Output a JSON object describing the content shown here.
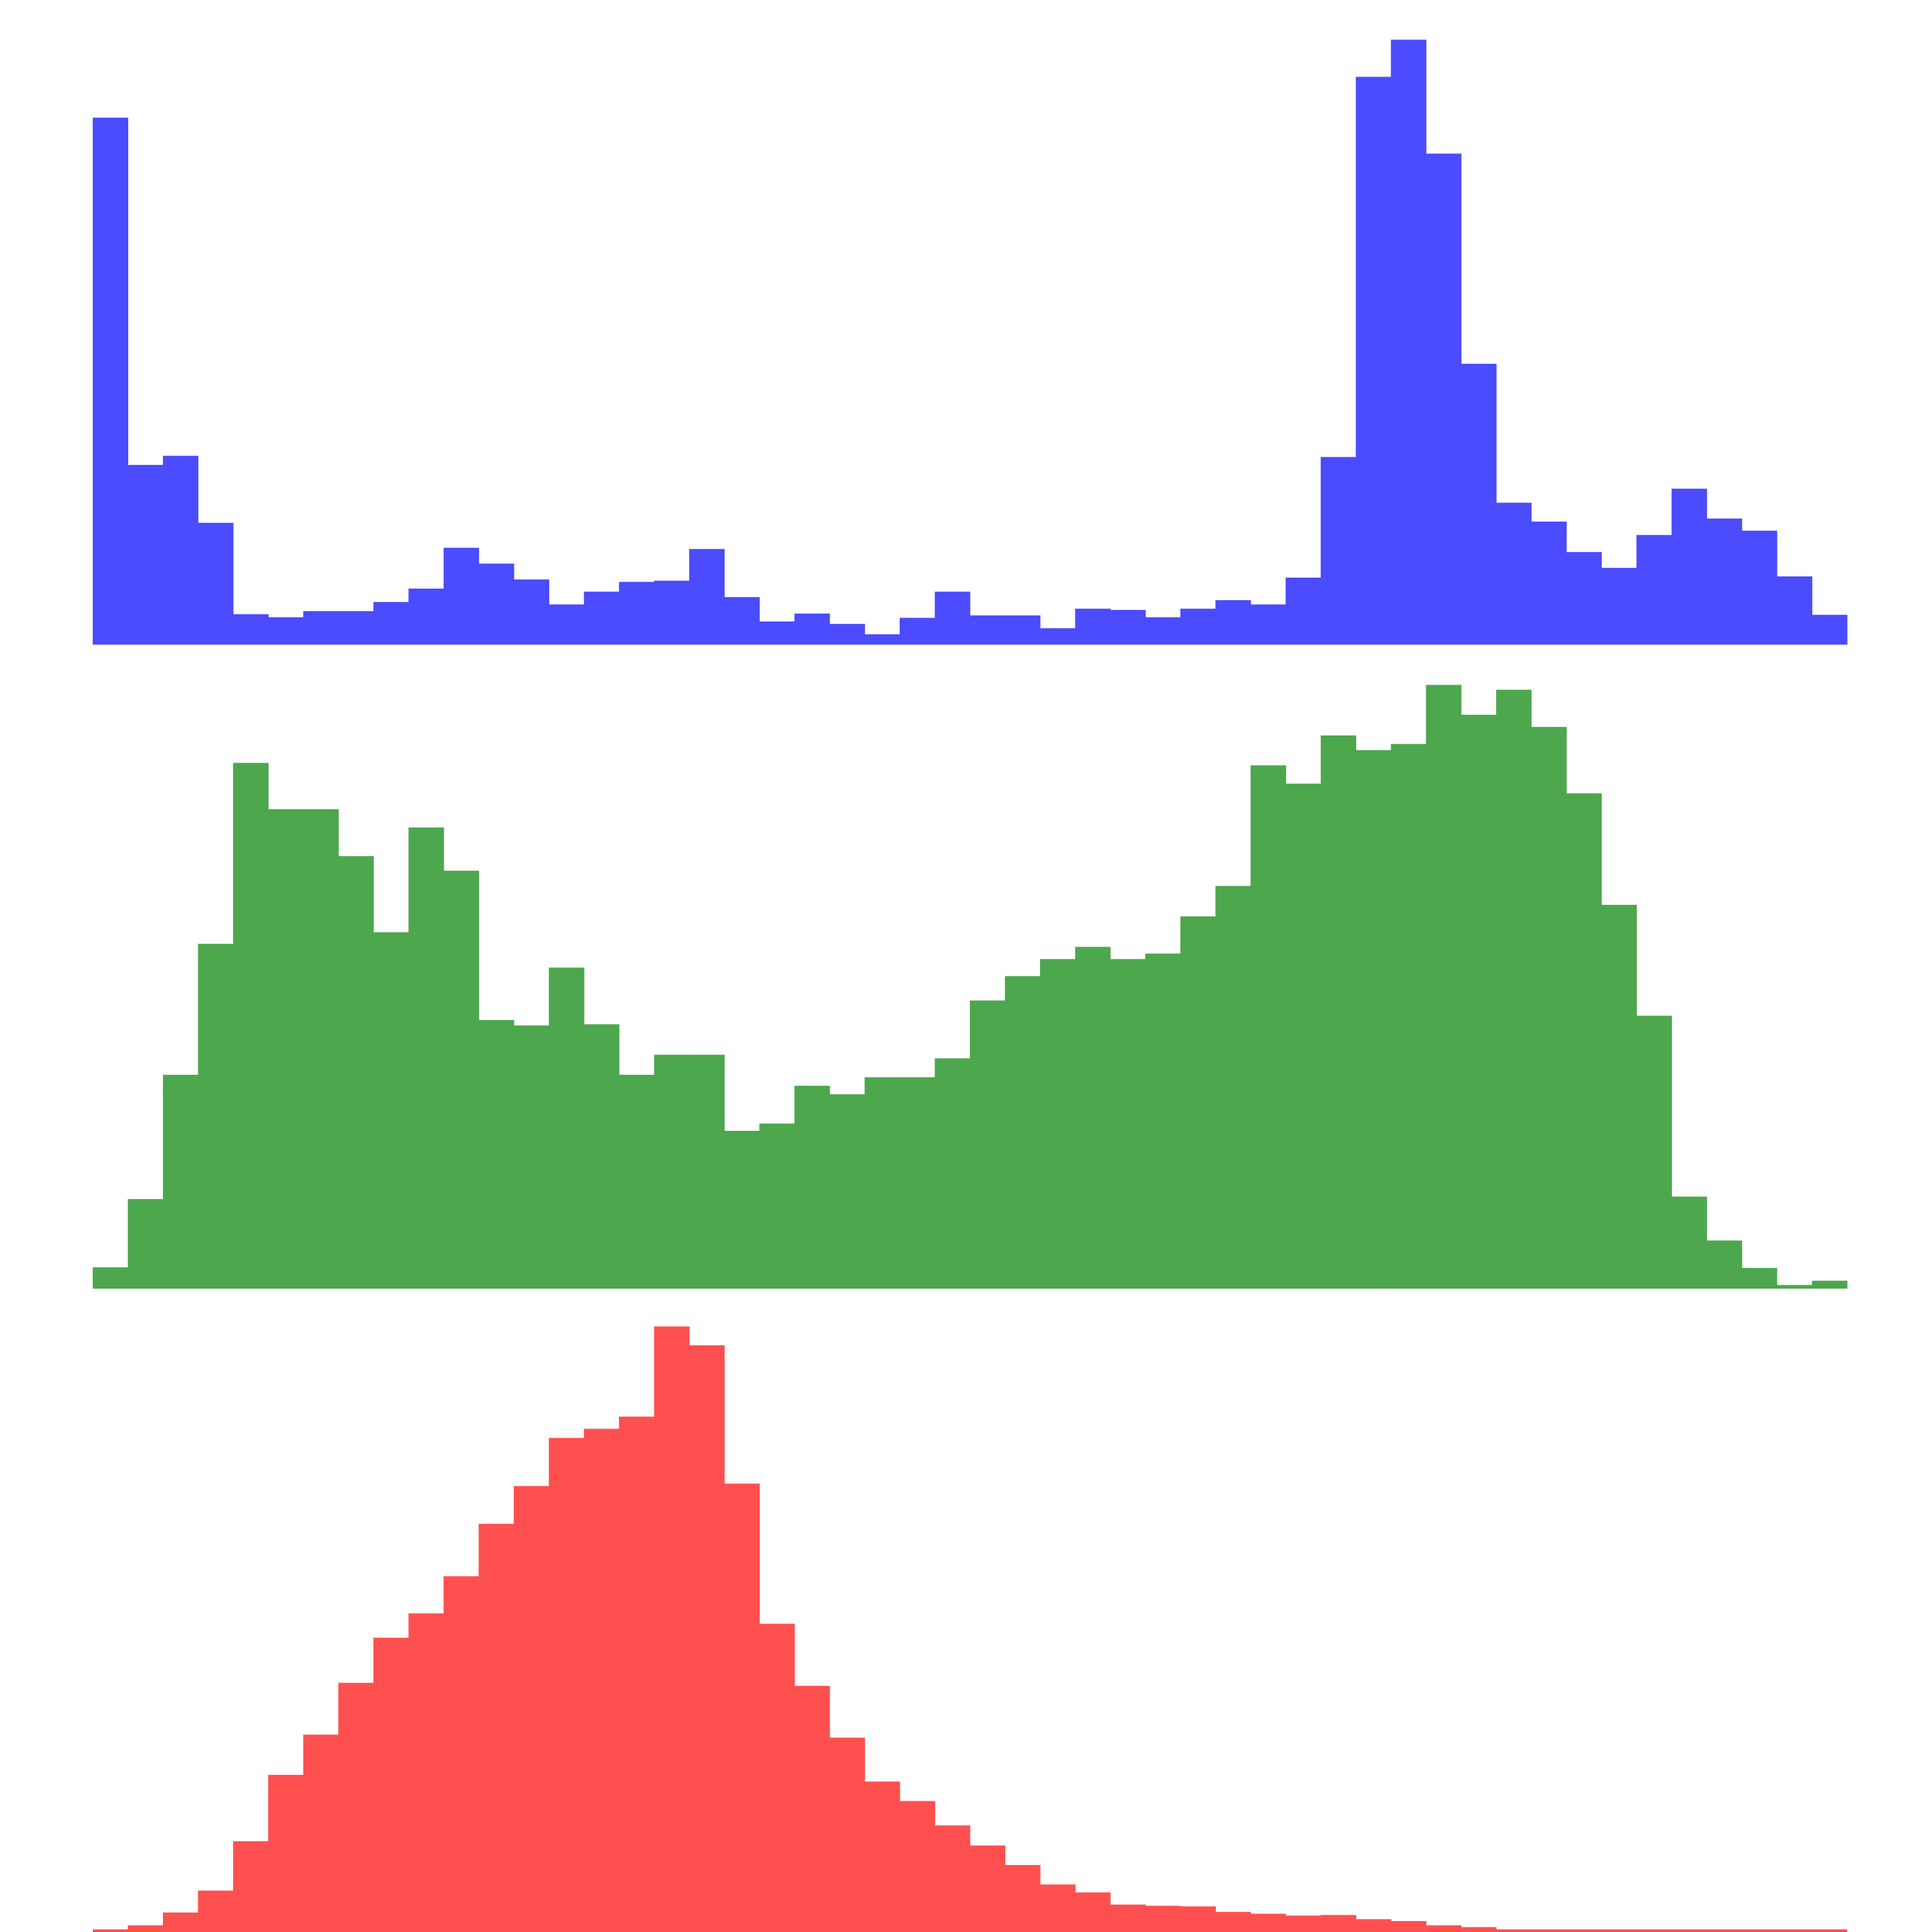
{
  "chart_data": [
    {
      "type": "bar",
      "name": "blue",
      "color": "#4b4bff",
      "ylim": [
        0,
        100
      ],
      "grid": false,
      "values": [
        86.5,
        29.5,
        31.0,
        20.0,
        5.0,
        4.5,
        5.5,
        5.5,
        7.0,
        9.2,
        15.9,
        13.3,
        10.7,
        6.6,
        8.7,
        10.3,
        10.5,
        15.7,
        7.8,
        3.8,
        5.1,
        3.4,
        1.7,
        4.4,
        8.7,
        4.8,
        4.8,
        2.7,
        5.9,
        5.7,
        4.5,
        5.9,
        7.3,
        6.6,
        11.0,
        30.8,
        93.2,
        99.3,
        80.6,
        46.1,
        23.3,
        20.2,
        15.2,
        12.6,
        18.0,
        25.6,
        20.7,
        18.7,
        11.2,
        4.9
      ]
    },
    {
      "type": "bar",
      "name": "green",
      "color": "#4da74d",
      "ylim": [
        0,
        100
      ],
      "grid": false,
      "values": [
        3.5,
        14.7,
        35.1,
        56.6,
        86.3,
        78.7,
        78.7,
        71.0,
        58.5,
        75.7,
        68.6,
        44.1,
        43.2,
        52.7,
        43.4,
        35.1,
        38.4,
        38.4,
        25.9,
        27.1,
        33.3,
        31.9,
        34.7,
        34.7,
        37.8,
        47.3,
        51.3,
        54.1,
        56.1,
        54.1,
        55.0,
        61.1,
        66.1,
        85.9,
        82.9,
        90.8,
        88.4,
        89.4,
        99.1,
        94.2,
        98.3,
        92.2,
        81.3,
        63.0,
        44.8,
        15.1,
        7.9,
        3.4,
        0.6,
        1.3
      ]
    },
    {
      "type": "bar",
      "name": "red",
      "color": "#ff5050",
      "ylim": [
        0,
        100
      ],
      "grid": false,
      "values": [
        0.2,
        1.1,
        3.2,
        6.8,
        14.9,
        25.8,
        32.4,
        40.9,
        48.3,
        52.3,
        58.4,
        67.0,
        73.2,
        81.1,
        82.6,
        84.6,
        99.4,
        96.3,
        73.6,
        50.6,
        40.4,
        31.9,
        24.7,
        21.5,
        17.5,
        14.2,
        11.0,
        7.8,
        6.5,
        4.5,
        4.3,
        4.2,
        3.3,
        3.0,
        2.7,
        2.8,
        2.1,
        1.8,
        1.1,
        0.8,
        0.4,
        0.3,
        0.2,
        0.1,
        0.3,
        0.1,
        0.0,
        0.1,
        0.0,
        0.1
      ]
    }
  ]
}
